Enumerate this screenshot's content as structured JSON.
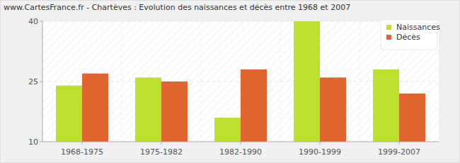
{
  "chart_data": {
    "type": "bar",
    "title": "www.CartesFrance.fr - Chartèves : Evolution des naissances et décès entre 1968 et 2007",
    "categories": [
      "1968-1975",
      "1975-1982",
      "1982-1990",
      "1990-1999",
      "1999-2007"
    ],
    "series": [
      {
        "name": "Naissances",
        "color": "#bbe12f",
        "values": [
          24,
          26,
          16,
          40,
          28
        ]
      },
      {
        "name": "Décès",
        "color": "#e0652f",
        "values": [
          27,
          25,
          28,
          26,
          22
        ]
      }
    ],
    "ylim": [
      10,
      40
    ],
    "yticks": [
      10,
      25,
      40
    ],
    "grid": true,
    "legend": "top-right"
  }
}
